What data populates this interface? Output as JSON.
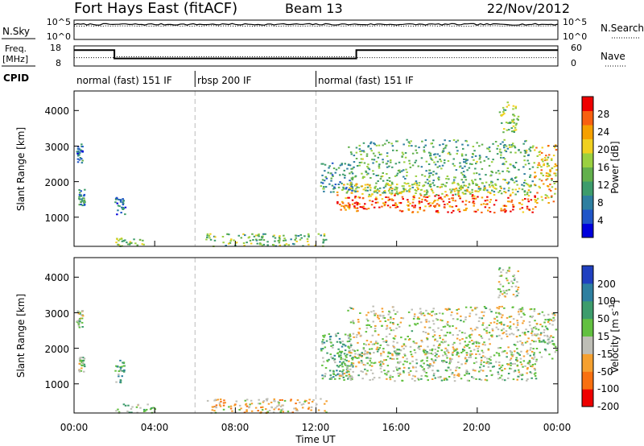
{
  "header": {
    "radar": "Fort Hays East (fitACF)",
    "beam": "Beam 13",
    "date": "22/Nov/2012"
  },
  "left_labels": {
    "nsky": "N.Sky",
    "freq_line1": "Freq.",
    "freq_line2": "[MHz]",
    "cpid": "CPID"
  },
  "right_labels": {
    "nsearch": "N.Search",
    "nave": "Nave"
  },
  "colors": {
    "axis": "#000000",
    "time_marker": "#bbbbbb",
    "ground_scatter": "#bebeb6"
  },
  "chart_data": [
    {
      "type": "line",
      "panel": "noise",
      "left_ticks": [
        "10^5",
        "10^0"
      ],
      "right_ticks": [
        "10^5",
        "10^0"
      ],
      "series": [
        {
          "name": "N.Sky",
          "style": "solid",
          "level": 0.78
        },
        {
          "name": "N.Search",
          "style": "dotted",
          "level": 0.7
        }
      ]
    },
    {
      "type": "line",
      "panel": "frequency",
      "left_ticks": [
        "18",
        "8"
      ],
      "right_ticks": [
        "60",
        "0"
      ],
      "series": [
        {
          "name": "Freq.",
          "style": "solid",
          "x": [
            0,
            2,
            2,
            14,
            14,
            24
          ],
          "y": [
            15.5,
            15.5,
            10.5,
            10.5,
            15.5,
            15.5
          ]
        },
        {
          "name": "Nave",
          "style": "dotted",
          "x": [
            0,
            2,
            2,
            14,
            14,
            24
          ],
          "y": [
            11,
            11,
            11.5,
            11.5,
            11,
            11
          ]
        }
      ]
    },
    {
      "type": "table",
      "panel": "cpid",
      "segments": [
        {
          "start": 0,
          "end": 6,
          "label": "normal (fast) 151 IF"
        },
        {
          "start": 6,
          "end": 12,
          "label": "rbsp 200 IF"
        },
        {
          "start": 12,
          "end": 24,
          "label": "normal (fast) 151 IF"
        }
      ]
    },
    {
      "type": "heatmap",
      "panel": "power",
      "ylabel": "Slant Range [km]",
      "ylim": [
        180,
        4550
      ],
      "yticks": [
        "1000",
        "2000",
        "3000",
        "4000"
      ],
      "colorbar": {
        "label": "Power [dB]",
        "range": [
          0,
          32
        ],
        "ticks": [
          "4",
          "8",
          "12",
          "16",
          "20",
          "24",
          "28"
        ],
        "stops": [
          "#0000dc",
          "#1f55c8",
          "#2e7fa0",
          "#3d9c6c",
          "#62b04c",
          "#9ad040",
          "#f0d020",
          "#f5a000",
          "#f86010",
          "#ee0000"
        ]
      },
      "regions": [
        {
          "x": [
            0.1,
            0.4
          ],
          "y": [
            2550,
            3100
          ],
          "level": 0.2
        },
        {
          "x": [
            0.2,
            0.5
          ],
          "y": [
            1350,
            1800
          ],
          "level": 0.3
        },
        {
          "x": [
            2.0,
            2.5
          ],
          "y": [
            1100,
            1650
          ],
          "level": 0.2
        },
        {
          "x": [
            2.0,
            3.5
          ],
          "y": [
            200,
            450
          ],
          "level": 0.5
        },
        {
          "x": [
            6.5,
            12.5
          ],
          "y": [
            200,
            550
          ],
          "level": 0.45
        },
        {
          "x": [
            12.2,
            13.8
          ],
          "y": [
            1700,
            2550
          ],
          "level": 0.3
        },
        {
          "x": [
            13.5,
            22.8
          ],
          "y": [
            1700,
            3200
          ],
          "level": 0.4
        },
        {
          "x": [
            13.0,
            22.9
          ],
          "y": [
            1150,
            1650
          ],
          "level": 0.9
        },
        {
          "x": [
            13.0,
            22.9
          ],
          "y": [
            1650,
            2000
          ],
          "level": 0.6
        },
        {
          "x": [
            21.0,
            22.0
          ],
          "y": [
            3400,
            4300
          ],
          "level": 0.5
        },
        {
          "x": [
            22.8,
            23.9
          ],
          "y": [
            1400,
            3050
          ],
          "level": 0.7
        }
      ]
    },
    {
      "type": "heatmap",
      "panel": "velocity",
      "ylabel": "Slant Range [km]",
      "xlabel": "Time UT",
      "xlim": [
        0,
        24
      ],
      "xticks": [
        "00:00",
        "04:00",
        "08:00",
        "12:00",
        "16:00",
        "20:00",
        "00:00"
      ],
      "ylim": [
        180,
        4550
      ],
      "yticks": [
        "1000",
        "2000",
        "3000",
        "4000"
      ],
      "colorbar": {
        "label": "Velocity [m s^-1]",
        "ticks": [
          "200",
          "100",
          "50",
          "15",
          "-15",
          "-50",
          "-100",
          "-200"
        ],
        "stops": [
          "#2040c0",
          "#2e7fa0",
          "#3d9c6c",
          "#62c040",
          "#bebeb6",
          "#f5a030",
          "#f87010",
          "#ee0000"
        ]
      },
      "regions": [
        {
          "x": [
            0.1,
            0.4
          ],
          "y": [
            2600,
            3100
          ],
          "level": 0.5
        },
        {
          "x": [
            0.2,
            0.5
          ],
          "y": [
            1350,
            1800
          ],
          "level": 0.5
        },
        {
          "x": [
            2.0,
            2.5
          ],
          "y": [
            1050,
            1700
          ],
          "level": 0.35
        },
        {
          "x": [
            2.0,
            4.0
          ],
          "y": [
            200,
            450
          ],
          "level": 0.45
        },
        {
          "x": [
            6.5,
            12.5
          ],
          "y": [
            200,
            600
          ],
          "level": 0.65
        },
        {
          "x": [
            12.2,
            13.8
          ],
          "y": [
            1150,
            2450
          ],
          "level": 0.35
        },
        {
          "x": [
            13.5,
            22.8
          ],
          "y": [
            1850,
            3200
          ],
          "level": 0.55
        },
        {
          "x": [
            13.0,
            22.9
          ],
          "y": [
            1100,
            2000
          ],
          "level": 0.5
        },
        {
          "x": [
            21.0,
            22.0
          ],
          "y": [
            3400,
            4300
          ],
          "level": 0.5
        },
        {
          "x": [
            22.8,
            23.9
          ],
          "y": [
            1700,
            3050
          ],
          "level": 0.5
        }
      ]
    }
  ]
}
